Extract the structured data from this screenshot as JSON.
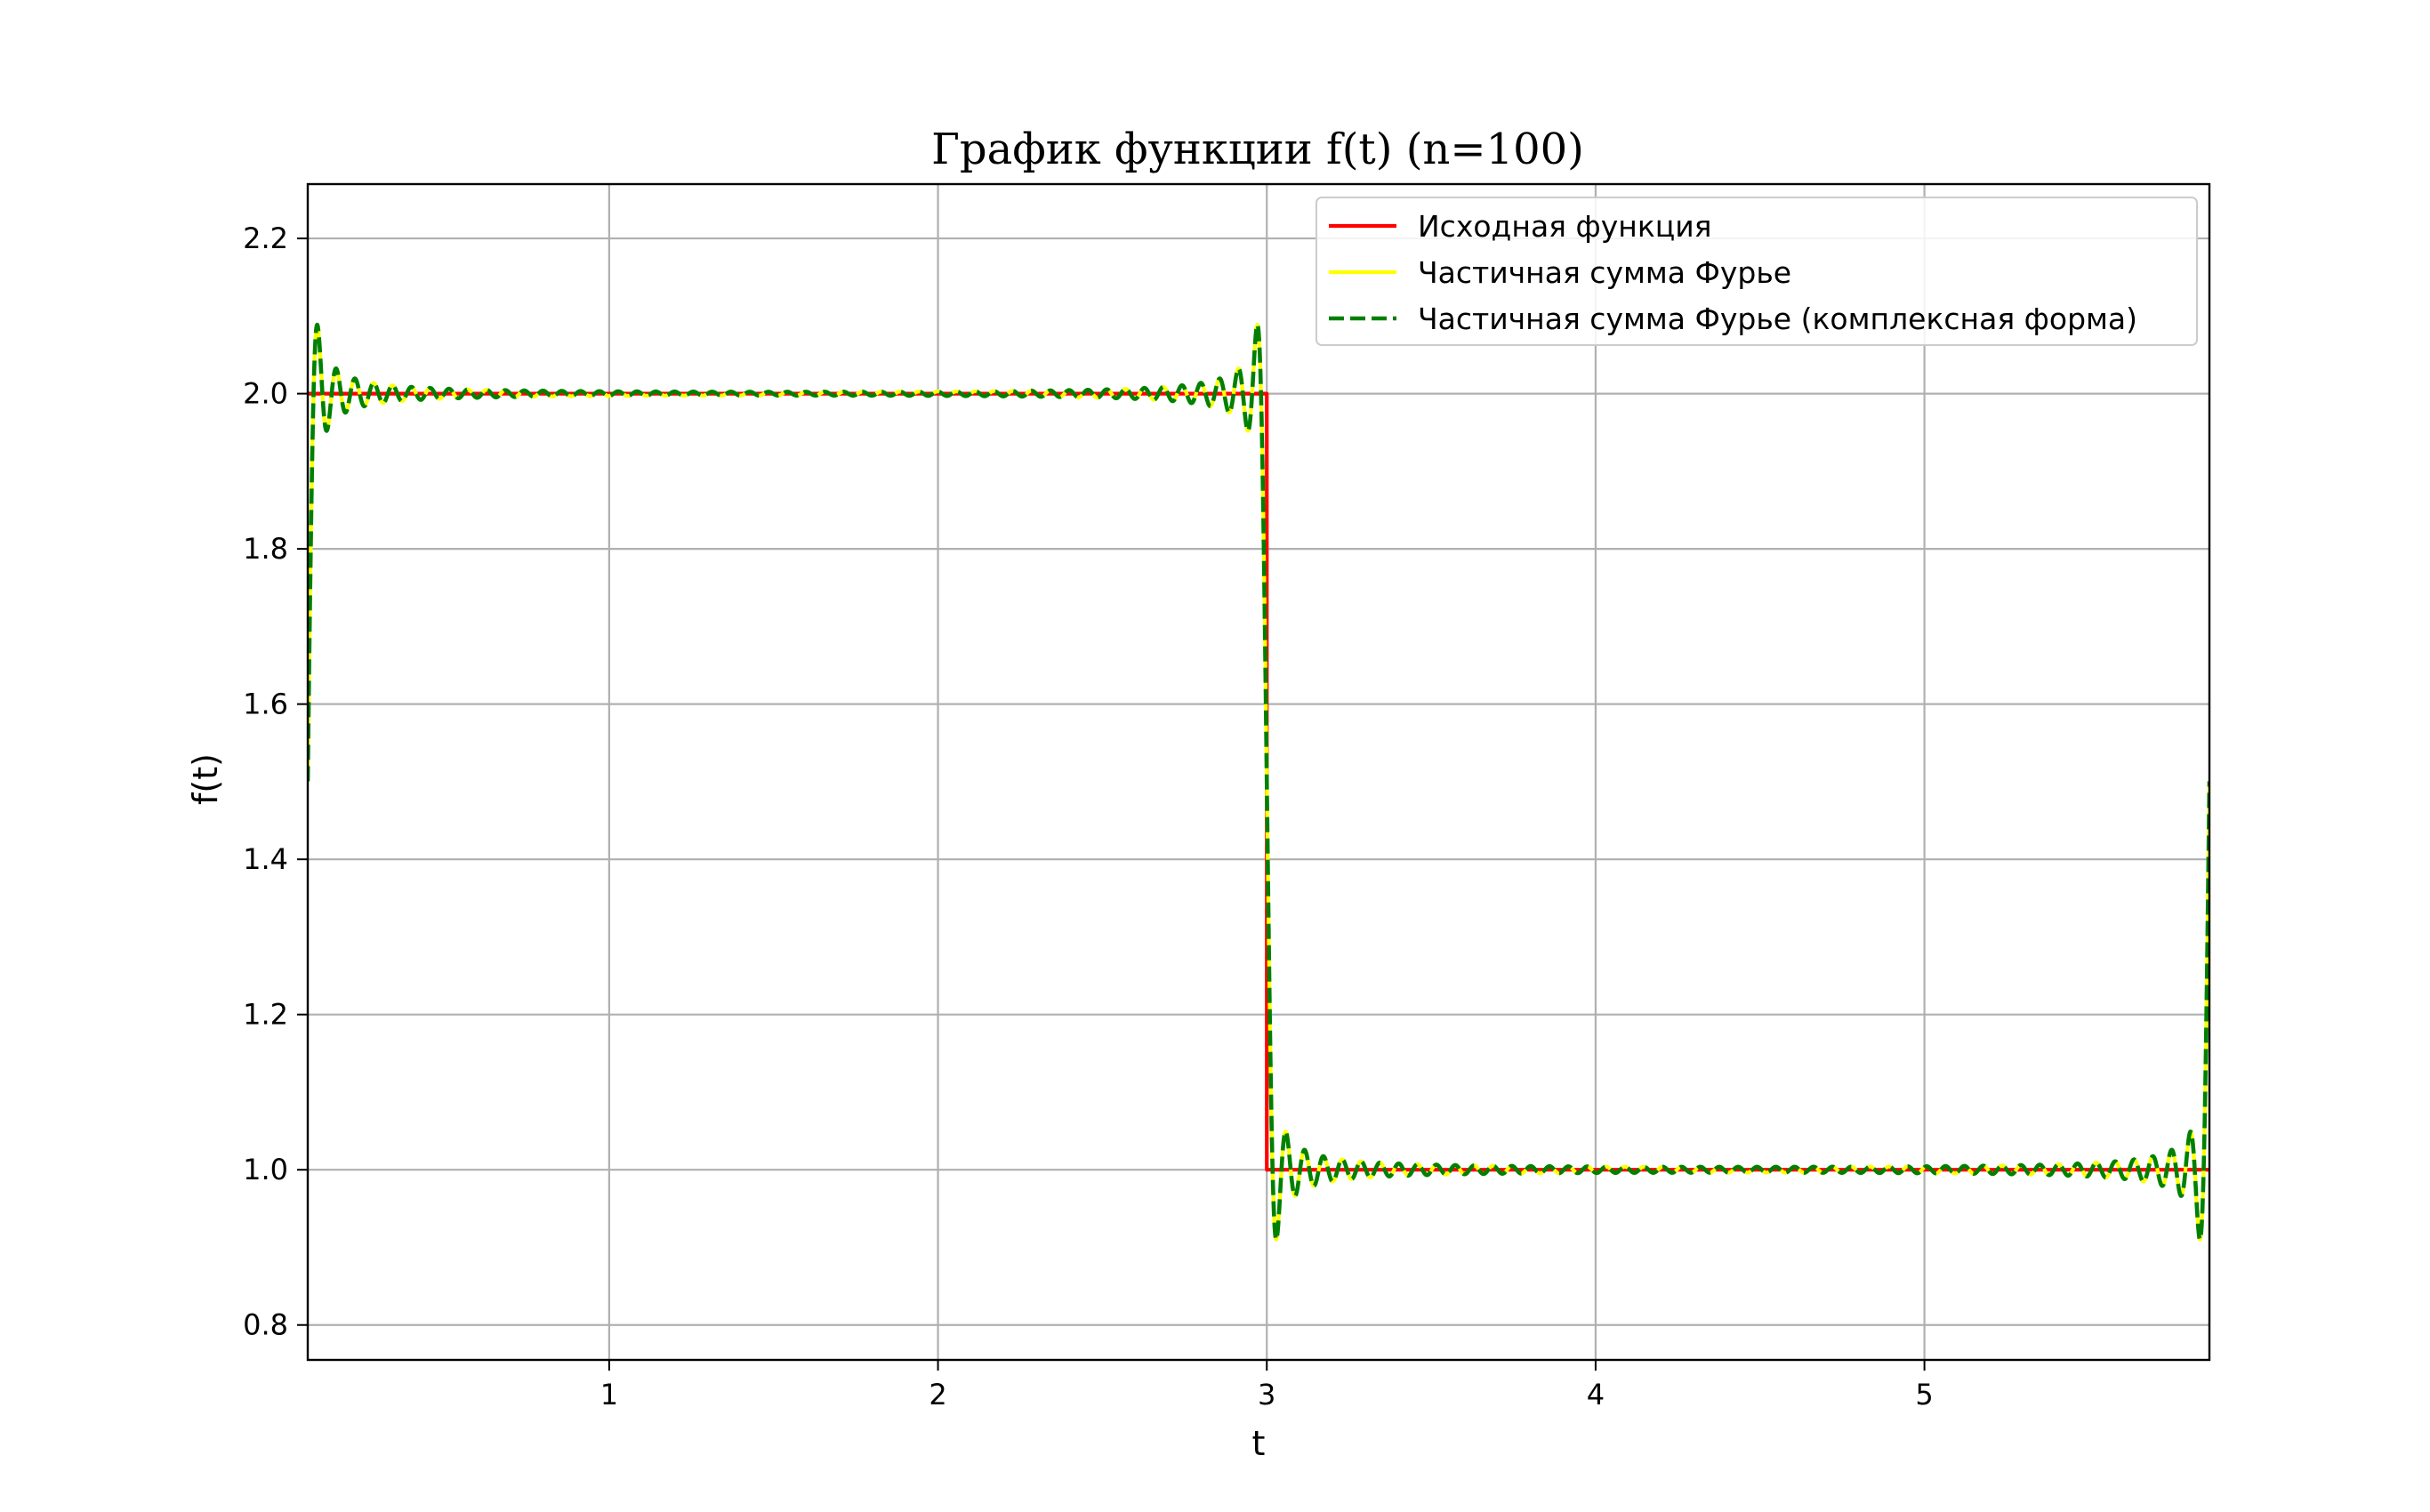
{
  "chart_data": {
    "type": "line",
    "title": "График функции f(t) (n=100)",
    "xlabel": "t",
    "ylabel": "f(t)",
    "xlim": [
      0.0833,
      5.8667
    ],
    "ylim": [
      0.755,
      2.27
    ],
    "xticks": [
      1,
      2,
      3,
      4,
      5
    ],
    "yticks": [
      0.8,
      1.0,
      1.2,
      1.4,
      1.6,
      1.8,
      2.0,
      2.2
    ],
    "xtick_labels": [
      "1",
      "2",
      "3",
      "4",
      "5"
    ],
    "ytick_labels": [
      "0.8",
      "1.0",
      "1.2",
      "1.4",
      "1.6",
      "1.8",
      "2.0",
      "2.2"
    ],
    "grid": true,
    "legend_position": "top-right",
    "series": [
      {
        "name": "Исходная функция",
        "color": "#ff0000",
        "style": "solid",
        "kind": "step",
        "segments": [
          {
            "from": 0.0833,
            "to": 3.0,
            "value": 2.0
          },
          {
            "from": 3.0,
            "to": 5.8667,
            "value": 1.0
          }
        ]
      },
      {
        "name": "Частичная сумма Фурье",
        "color": "#ffff00",
        "style": "solid",
        "kind": "fourier",
        "n": 100,
        "period_start": 0.0833,
        "period_end": 5.8667,
        "jump_at": 3.0,
        "level_left": 2.0,
        "level_right": 1.0
      },
      {
        "name": "Частичная сумма Фурье (комплексная форма)",
        "color": "#008000",
        "style": "dashed",
        "kind": "fourier",
        "n": 100,
        "period_start": 0.0833,
        "period_end": 5.8667,
        "jump_at": 3.0,
        "level_left": 2.0,
        "level_right": 1.0
      }
    ]
  }
}
